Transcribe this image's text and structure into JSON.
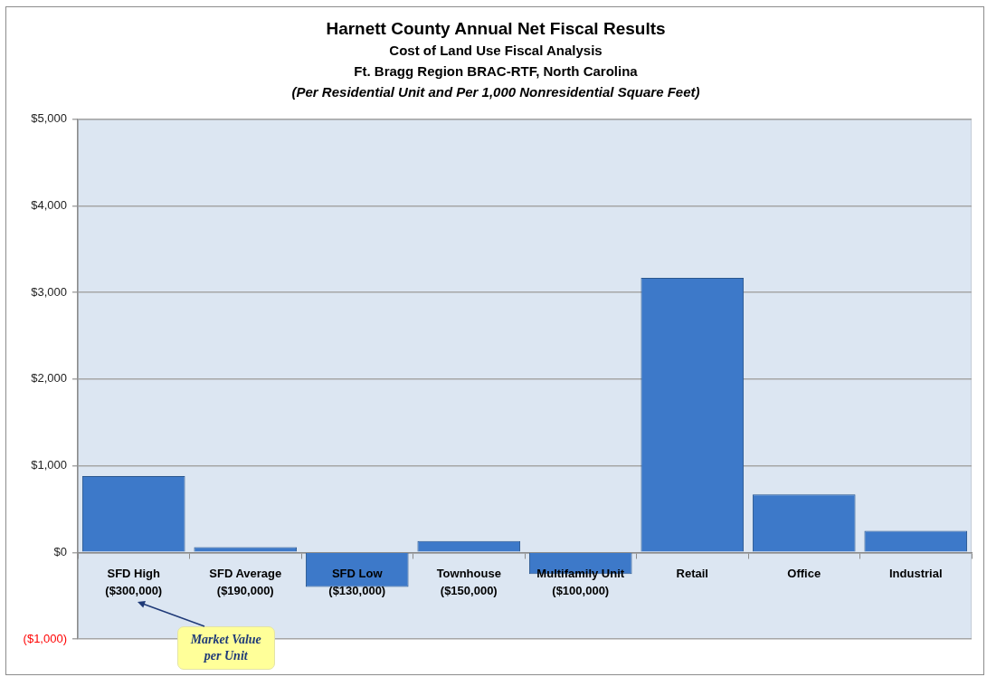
{
  "chart_data": {
    "type": "bar",
    "title": "Harnett County Annual Net Fiscal Results",
    "subtitle": "Cost of Land Use Fiscal Analysis\nFt. Bragg Region BRAC-RTF, North Carolina\n(Per Residential Unit and Per 1,000 Nonresidential Square Feet)",
    "categories": [
      "SFD High\n($300,000)",
      "SFD Average\n($190,000)",
      "SFD Low\n($130,000)",
      "Townhouse\n($150,000)",
      "Multifamily Unit\n($100,000)",
      "Retail",
      "Office",
      "Industrial"
    ],
    "values": [
      880,
      60,
      -400,
      130,
      -250,
      3170,
      670,
      250
    ],
    "color": "#3d79c9",
    "ylim": [
      -1000,
      5000
    ],
    "yticks": [
      {
        "value": -1000,
        "label": "($1,000)"
      },
      {
        "value": 0,
        "label": "$0"
      },
      {
        "value": 1000,
        "label": "$1,000"
      },
      {
        "value": 2000,
        "label": "$2,000"
      },
      {
        "value": 3000,
        "label": "$3,000"
      },
      {
        "value": 4000,
        "label": "$4,000"
      },
      {
        "value": 5000,
        "label": "$5,000"
      }
    ],
    "grid": "y",
    "annotations": [
      "Market Value\nper Unit"
    ]
  }
}
